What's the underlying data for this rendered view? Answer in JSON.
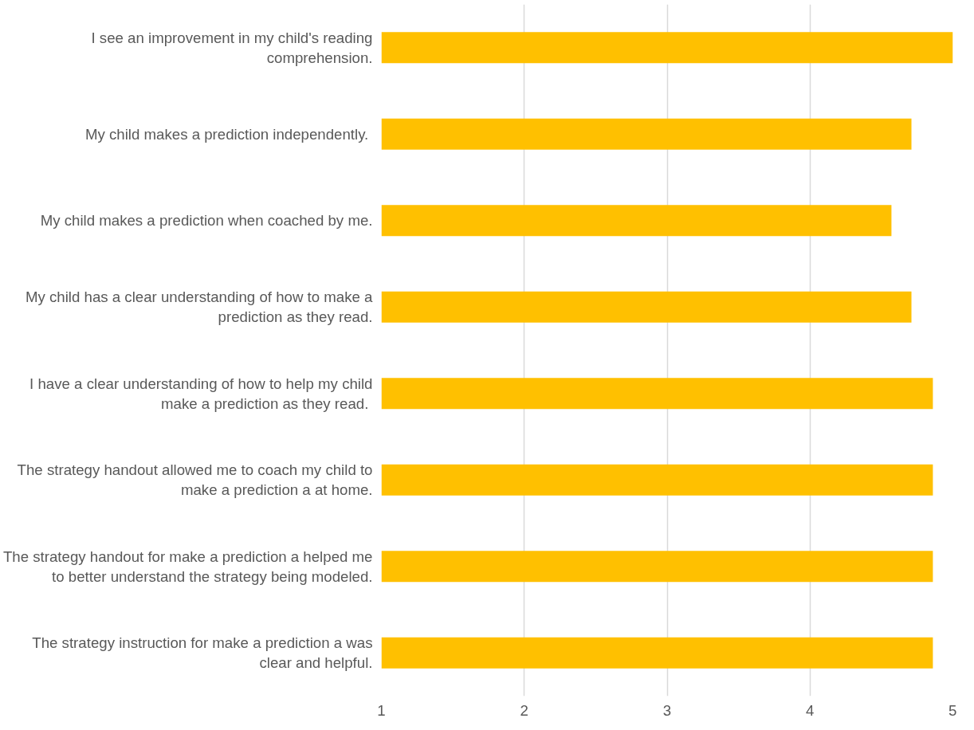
{
  "chart_data": {
    "type": "bar",
    "orientation": "horizontal",
    "categories": [
      "I see an improvement in my child's reading comprehension.",
      "My child makes a prediction  independently.",
      "My child makes a prediction when coached by me.",
      "My child has a clear understanding of how to make a prediction as they read.",
      "I have a clear understanding of how to help my child make a prediction  as they read.",
      "The strategy handout allowed me to coach my child to make a prediction a at home.",
      "The strategy handout for make a prediction a helped me to better understand the strategy being modeled.",
      "The strategy instruction for make a prediction a was clear and helpful."
    ],
    "values": [
      5,
      4.71,
      4.57,
      4.71,
      4.86,
      4.86,
      4.86,
      4.86
    ],
    "color": "#ffc000",
    "xlim": [
      1,
      5
    ],
    "xticks": [
      1,
      2,
      3,
      4,
      5
    ],
    "grid": "x"
  }
}
